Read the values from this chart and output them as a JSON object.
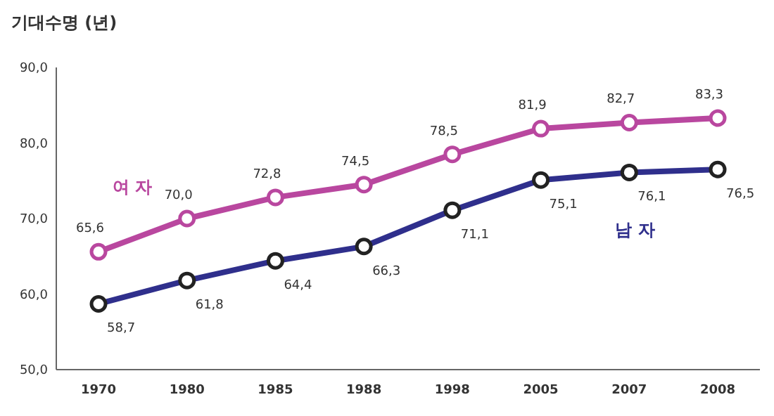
{
  "chart_data": {
    "type": "line",
    "ylabel": "기대수명 (년)",
    "categories": [
      "1970",
      "1980",
      "1985",
      "1988",
      "1998",
      "2005",
      "2007",
      "2008"
    ],
    "ylim": [
      50,
      90
    ],
    "yticks": [
      {
        "value": 50,
        "label": "50,0"
      },
      {
        "value": 60,
        "label": "60,0"
      },
      {
        "value": 70,
        "label": "70,0"
      },
      {
        "value": 80,
        "label": "80,0"
      },
      {
        "value": 90,
        "label": "90,0"
      }
    ],
    "grid": false,
    "legend": false,
    "marker": "circle",
    "line_style": "solid",
    "series": [
      {
        "name": "여 자",
        "color": "#b9479f",
        "values": [
          65.6,
          70.0,
          72.8,
          74.5,
          78.5,
          81.9,
          82.7,
          83.3
        ],
        "value_labels": [
          "65,6",
          "70,0",
          "72,8",
          "74,5",
          "78,5",
          "81,9",
          "82,7",
          "83,3"
        ]
      },
      {
        "name": "남 자",
        "color": "#2f2f8c",
        "values": [
          58.7,
          61.8,
          64.4,
          66.3,
          71.1,
          75.1,
          76.1,
          76.5
        ],
        "value_labels": [
          "58,7",
          "61,8",
          "64,4",
          "66,3",
          "71,1",
          "75,1",
          "76,1",
          "76,5"
        ]
      }
    ]
  }
}
